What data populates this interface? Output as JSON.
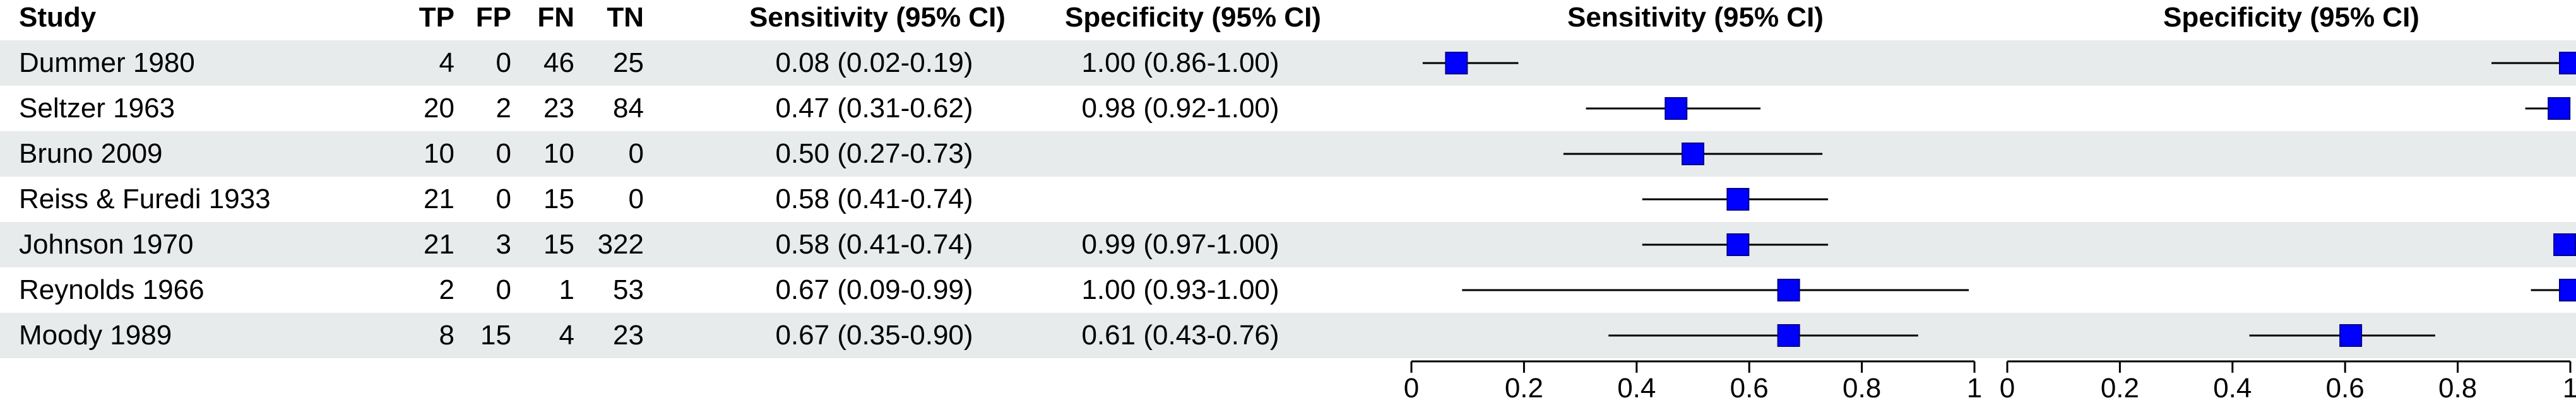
{
  "headers": {
    "study": "Study",
    "tp": "TP",
    "fp": "FP",
    "fn": "FN",
    "tn": "TN",
    "sens": "Sensitivity (95% CI)",
    "spec": "Specificity (95% CI)",
    "sens_plot": "Sensitivity (95% CI)",
    "spec_plot": "Specificity (95% CI)"
  },
  "rows": [
    {
      "study": "Dummer 1980",
      "tp": "4",
      "fp": "0",
      "fn": "46",
      "tn": "25",
      "sens": "0.08 (0.02-0.19)",
      "spec": "1.00 (0.86-1.00)"
    },
    {
      "study": "Seltzer 1963",
      "tp": "20",
      "fp": "2",
      "fn": "23",
      "tn": "84",
      "sens": "0.47 (0.31-0.62)",
      "spec": "0.98 (0.92-1.00)"
    },
    {
      "study": "Bruno 2009",
      "tp": "10",
      "fp": "0",
      "fn": "10",
      "tn": "0",
      "sens": "0.50 (0.27-0.73)",
      "spec": ""
    },
    {
      "study": "Reiss & Furedi 1933",
      "tp": "21",
      "fp": "0",
      "fn": "15",
      "tn": "0",
      "sens": "0.58 (0.41-0.74)",
      "spec": ""
    },
    {
      "study": "Johnson 1970",
      "tp": "21",
      "fp": "3",
      "fn": "15",
      "tn": "322",
      "sens": "0.58 (0.41-0.74)",
      "spec": "0.99 (0.97-1.00)"
    },
    {
      "study": "Reynolds 1966",
      "tp": "2",
      "fp": "0",
      "fn": "1",
      "tn": "53",
      "sens": "0.67 (0.09-0.99)",
      "spec": "1.00 (0.93-1.00)"
    },
    {
      "study": "Moody 1989",
      "tp": "8",
      "fp": "15",
      "fn": "4",
      "tn": "23",
      "sens": "0.67 (0.35-0.90)",
      "spec": "0.61 (0.43-0.76)"
    }
  ],
  "chart_data": [
    {
      "type": "scatter",
      "title": "Sensitivity (95% CI)",
      "xlim": [
        0,
        1
      ],
      "xticks": [
        "0",
        "0.2",
        "0.4",
        "0.6",
        "0.8",
        "1"
      ],
      "marker_color": "#0000ff",
      "points": [
        {
          "study": "Dummer 1980",
          "est": 0.08,
          "lo": 0.02,
          "hi": 0.19
        },
        {
          "study": "Seltzer 1963",
          "est": 0.47,
          "lo": 0.31,
          "hi": 0.62
        },
        {
          "study": "Bruno 2009",
          "est": 0.5,
          "lo": 0.27,
          "hi": 0.73
        },
        {
          "study": "Reiss & Furedi 1933",
          "est": 0.58,
          "lo": 0.41,
          "hi": 0.74
        },
        {
          "study": "Johnson 1970",
          "est": 0.58,
          "lo": 0.41,
          "hi": 0.74
        },
        {
          "study": "Reynolds 1966",
          "est": 0.67,
          "lo": 0.09,
          "hi": 0.99
        },
        {
          "study": "Moody 1989",
          "est": 0.67,
          "lo": 0.35,
          "hi": 0.9
        }
      ]
    },
    {
      "type": "scatter",
      "title": "Specificity (95% CI)",
      "xlim": [
        0,
        1
      ],
      "xticks": [
        "0",
        "0.2",
        "0.4",
        "0.6",
        "0.8",
        "1"
      ],
      "marker_color": "#0000ff",
      "points": [
        {
          "study": "Dummer 1980",
          "est": 1.0,
          "lo": 0.86,
          "hi": 1.0
        },
        {
          "study": "Seltzer 1963",
          "est": 0.98,
          "lo": 0.92,
          "hi": 1.0
        },
        {
          "study": "Johnson 1970",
          "est": 0.99,
          "lo": 0.97,
          "hi": 1.0
        },
        {
          "study": "Reynolds 1966",
          "est": 1.0,
          "lo": 0.93,
          "hi": 1.0
        },
        {
          "study": "Moody 1989",
          "est": 0.61,
          "lo": 0.43,
          "hi": 0.76
        }
      ]
    }
  ]
}
